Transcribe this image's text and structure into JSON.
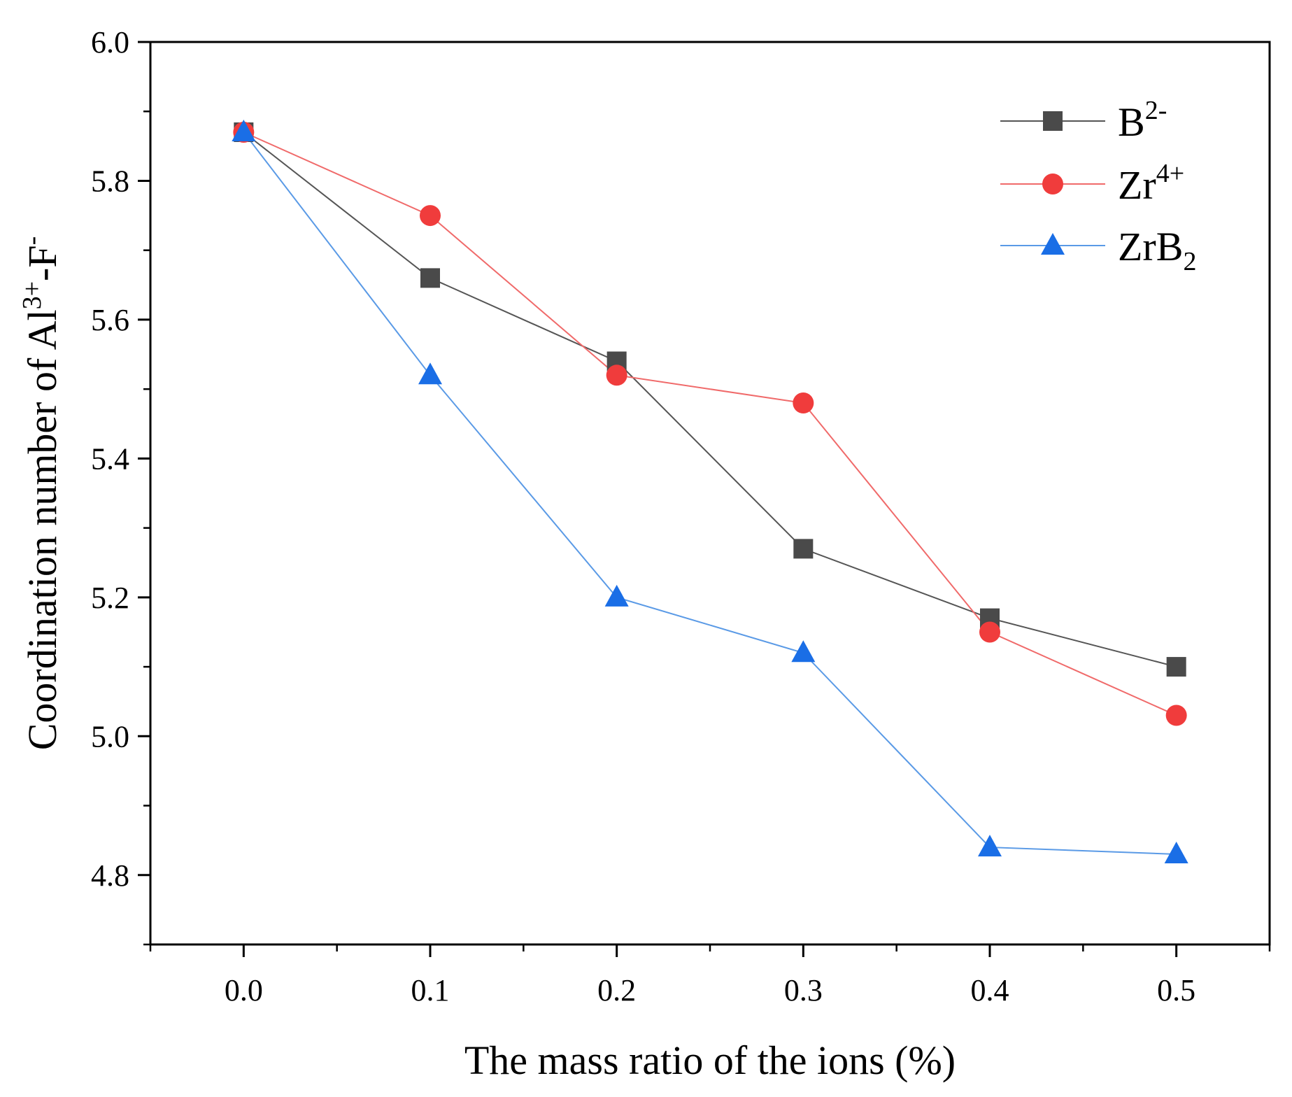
{
  "chart_data": {
    "type": "line",
    "title": "",
    "xlabel": "The mass ratio of the ions (%)",
    "ylabel": {
      "prefix": "Coordination number of Al",
      "sup1": "3+",
      "mid": "-F",
      "sup2": "-"
    },
    "xlim": [
      -0.05,
      0.55
    ],
    "ylim": [
      4.7,
      6.0
    ],
    "x_ticks": [
      0.0,
      0.1,
      0.2,
      0.3,
      0.4,
      0.5
    ],
    "x_tick_labels": [
      "0.0",
      "0.1",
      "0.2",
      "0.3",
      "0.4",
      "0.5"
    ],
    "x_minor_ticks": [
      -0.05,
      0.05,
      0.15,
      0.25,
      0.35,
      0.45,
      0.55
    ],
    "y_ticks": [
      4.8,
      5.0,
      5.2,
      5.4,
      5.6,
      5.8,
      6.0
    ],
    "y_tick_labels": [
      "4.8",
      "5.0",
      "5.2",
      "5.4",
      "5.6",
      "5.8",
      "6.0"
    ],
    "y_minor_ticks": [
      4.7,
      4.9,
      5.1,
      5.3,
      5.5,
      5.7,
      5.9
    ],
    "grid": false,
    "legend_position": "top-right",
    "x": [
      0.0,
      0.1,
      0.2,
      0.3,
      0.4,
      0.5
    ],
    "series": [
      {
        "name": "B2-",
        "label_base": "B",
        "label_sup": "2-",
        "label_sub": "",
        "marker": "square",
        "marker_color": "#4a4a4a",
        "line_color": "#555555",
        "values": [
          5.87,
          5.66,
          5.54,
          5.27,
          5.17,
          5.1
        ]
      },
      {
        "name": "Zr4+",
        "label_base": "Zr",
        "label_sup": "4+",
        "label_sub": "",
        "marker": "circle",
        "marker_color": "#f03c3c",
        "line_color": "#f06a6a",
        "values": [
          5.87,
          5.75,
          5.52,
          5.48,
          5.15,
          5.03
        ]
      },
      {
        "name": "ZrB2",
        "label_base": "ZrB",
        "label_sup": "",
        "label_sub": "2",
        "marker": "triangle",
        "marker_color": "#1a6ee6",
        "line_color": "#5a9ae6",
        "values": [
          5.87,
          5.52,
          5.2,
          5.12,
          4.84,
          4.83
        ]
      }
    ]
  }
}
